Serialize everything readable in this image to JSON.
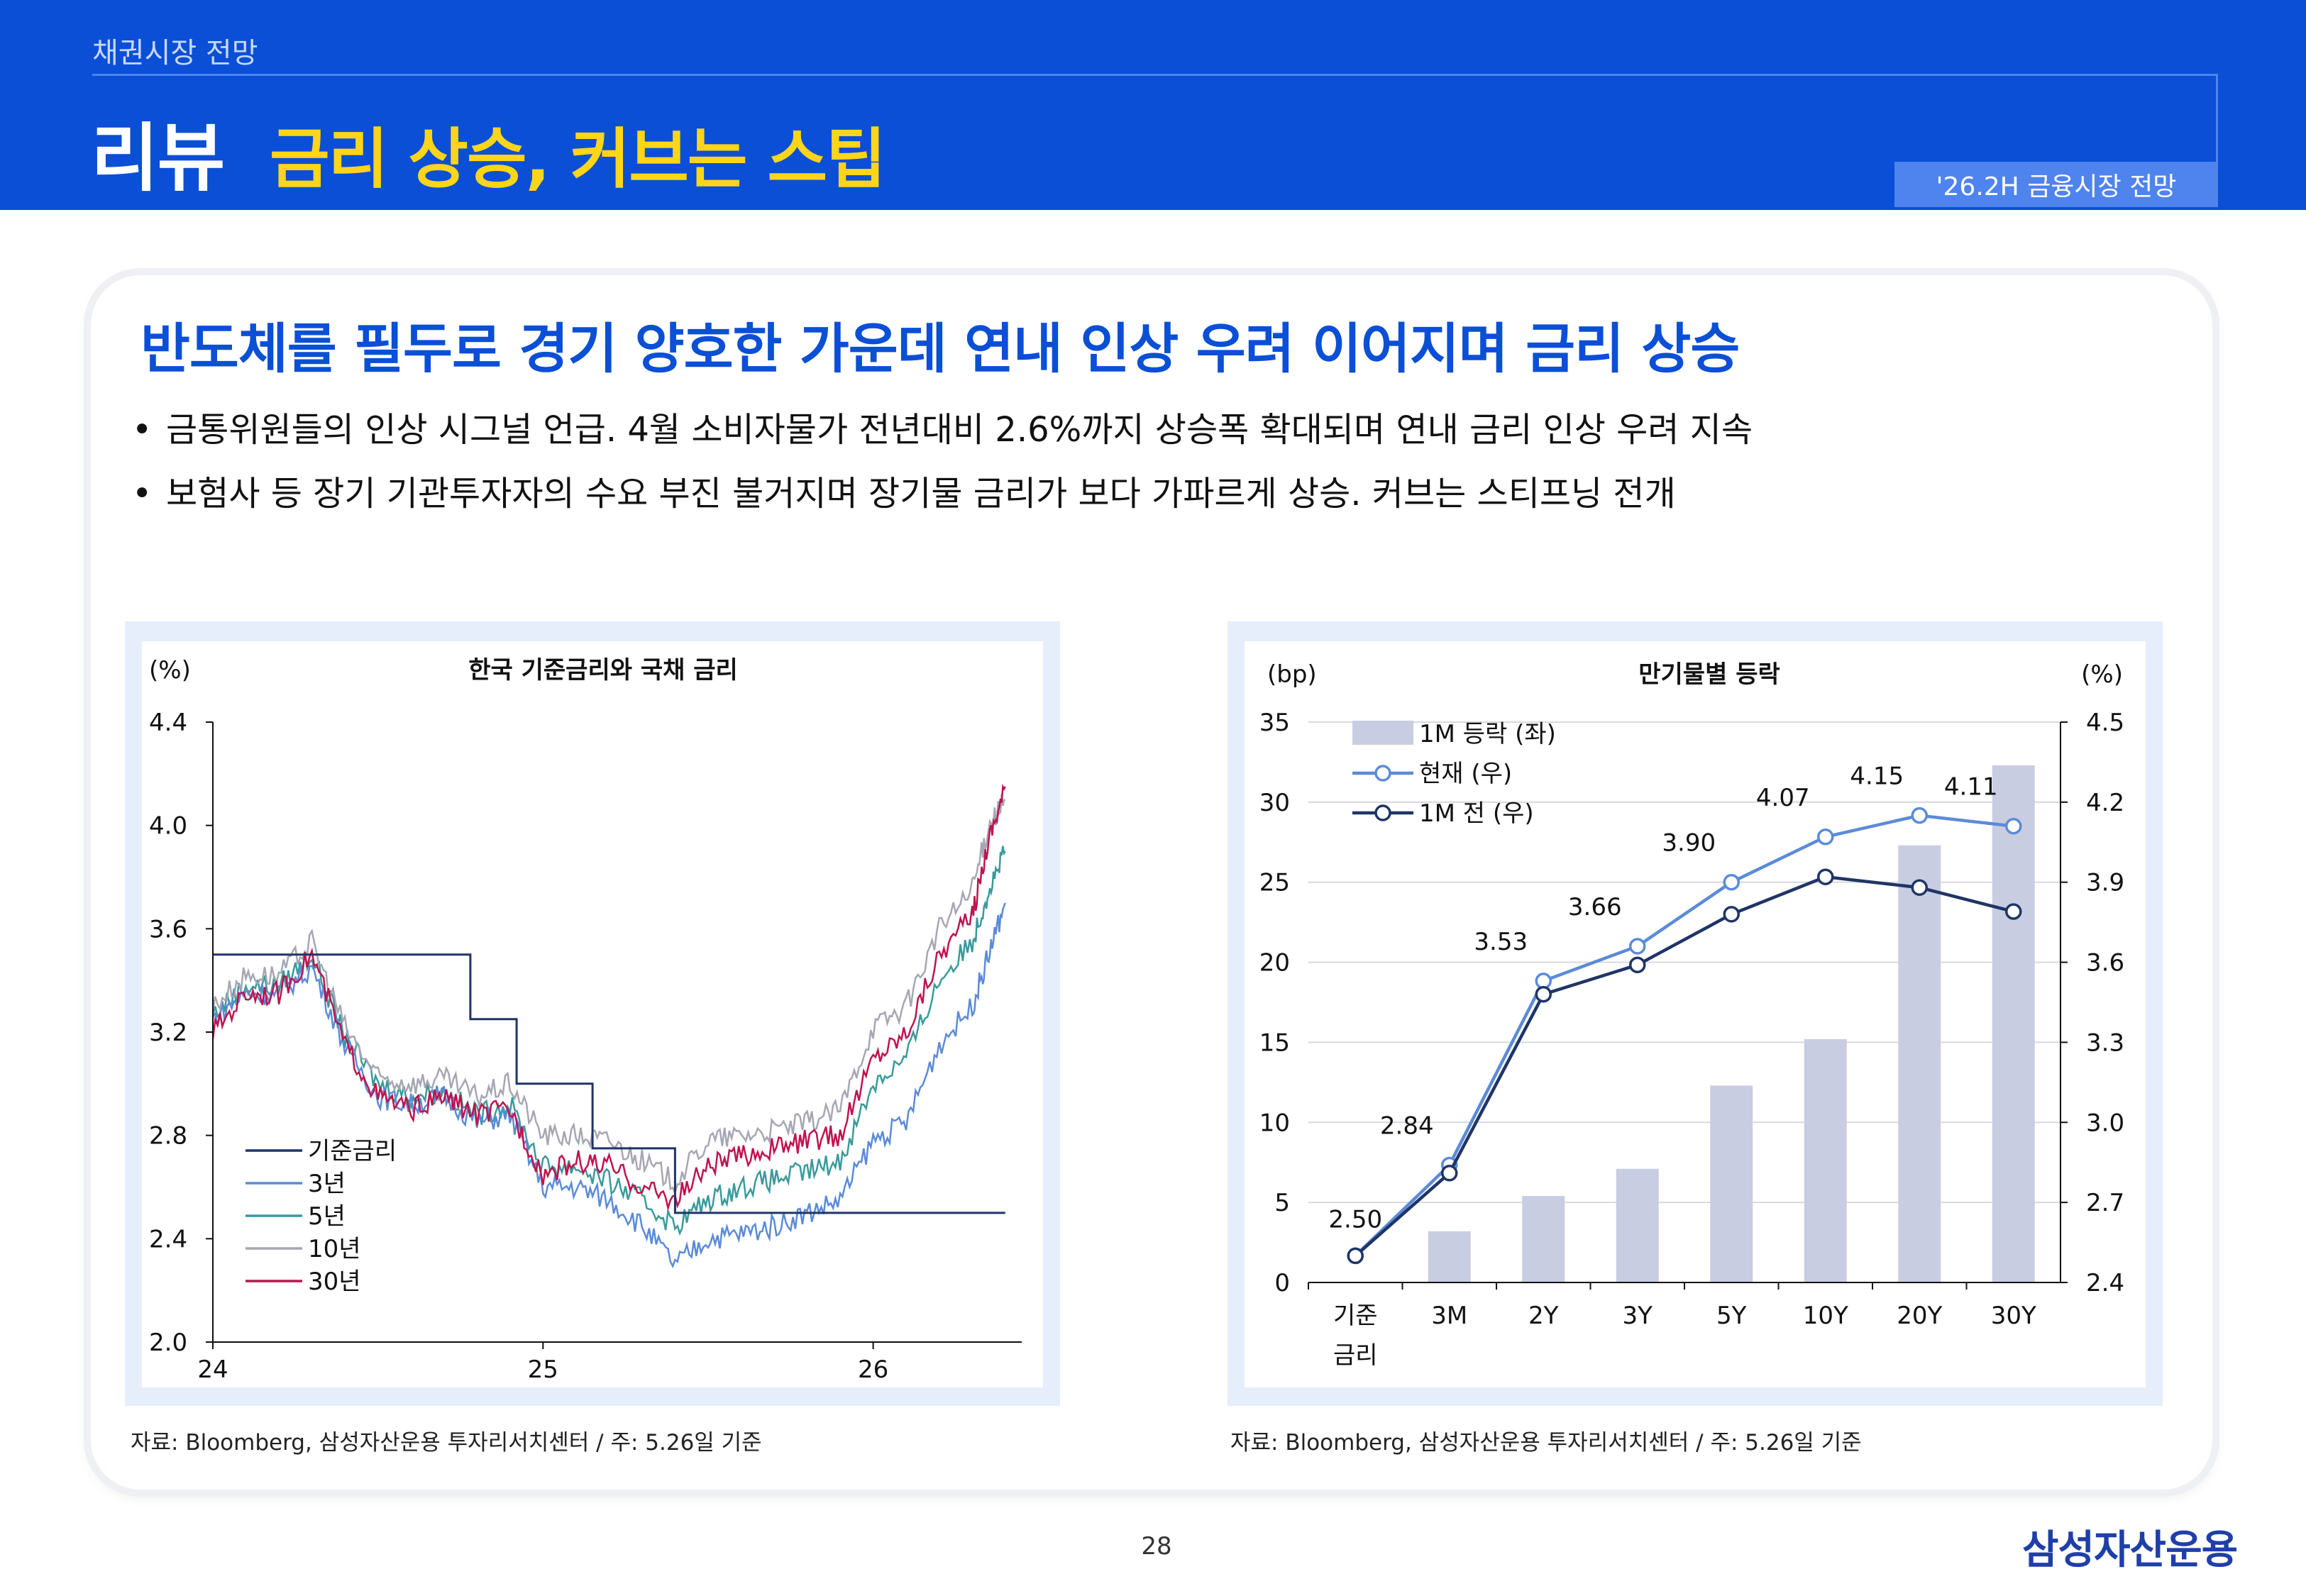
{
  "header": {
    "section": "채권시장 전망",
    "title": "리뷰",
    "subtitle": "금리 상승, 커브는 스팁",
    "tag": "'26.2H 금융시장 전망"
  },
  "main": {
    "headline": "반도체를 필두로 경기 양호한 가운데 연내 인상 우려 이어지며 금리 상승",
    "bullets": [
      "금통위원들의 인상 시그널 언급. 4월 소비자물가 전년대비 2.6%까지 상승폭 확대되며 연내 금리 인상 우려 지속",
      "보험사 등 장기 기관투자자의 수요 부진 불거지며 장기물 금리가 보다 가파르게 상승. 커브는 스티프닝 전개"
    ],
    "bullet_marker": "•"
  },
  "footer": {
    "page_number": "28",
    "brand": "삼성자산운용"
  },
  "chart_data": [
    {
      "type": "line",
      "title": "한국 기준금리와 국채 금리",
      "unit_label": "(%)",
      "ylim": [
        2.0,
        4.4
      ],
      "y_ticks": [
        "4.4",
        "4.0",
        "3.6",
        "3.2",
        "2.8",
        "2.4",
        "2.0"
      ],
      "x_ticks": [
        "24",
        "25",
        "26"
      ],
      "x_range": [
        24.0,
        26.45
      ],
      "legend": [
        "기준금리",
        "3년",
        "5년",
        "10년",
        "30년"
      ],
      "legend_position": "bottom-left",
      "colors": {
        "base_rate": "#1f3566",
        "y3": "#5b8bd8",
        "y5": "#3a9a9c",
        "y10": "#a6a6b4",
        "y30": "#c0134f"
      },
      "series": [
        {
          "name": "기준금리",
          "step": true,
          "x": [
            24.0,
            24.78,
            24.78,
            24.92,
            24.92,
            25.15,
            25.15,
            25.4,
            25.4,
            26.4
          ],
          "values": [
            3.5,
            3.5,
            3.25,
            3.25,
            3.0,
            3.0,
            2.75,
            2.75,
            2.5,
            2.5
          ]
        },
        {
          "name": "3년",
          "x": [
            24.0,
            24.1,
            24.2,
            24.3,
            24.4,
            24.5,
            24.6,
            24.7,
            24.8,
            24.9,
            25.0,
            25.1,
            25.2,
            25.3,
            25.4,
            25.5,
            25.6,
            25.7,
            25.8,
            25.9,
            26.0,
            26.1,
            26.2,
            26.3,
            26.35,
            26.4
          ],
          "values": [
            3.25,
            3.35,
            3.35,
            3.45,
            3.15,
            2.95,
            2.92,
            2.95,
            2.85,
            2.88,
            2.6,
            2.6,
            2.55,
            2.45,
            2.3,
            2.4,
            2.42,
            2.45,
            2.5,
            2.55,
            2.78,
            2.85,
            3.15,
            3.3,
            3.5,
            3.7
          ]
        },
        {
          "name": "5년",
          "x": [
            24.0,
            24.1,
            24.2,
            24.3,
            24.4,
            24.5,
            24.6,
            24.7,
            24.8,
            24.9,
            25.0,
            25.1,
            25.2,
            25.3,
            25.4,
            25.5,
            25.6,
            25.7,
            25.8,
            25.9,
            26.0,
            26.1,
            26.2,
            26.3,
            26.35,
            26.4
          ],
          "values": [
            3.27,
            3.38,
            3.38,
            3.5,
            3.18,
            3.0,
            2.95,
            2.97,
            2.88,
            2.92,
            2.68,
            2.68,
            2.62,
            2.55,
            2.45,
            2.55,
            2.6,
            2.63,
            2.66,
            2.7,
            3.0,
            3.1,
            3.4,
            3.55,
            3.75,
            3.9
          ]
        },
        {
          "name": "10년",
          "x": [
            24.0,
            24.1,
            24.2,
            24.3,
            24.4,
            24.5,
            24.6,
            24.7,
            24.8,
            24.9,
            25.0,
            25.1,
            25.2,
            25.3,
            25.4,
            25.5,
            25.6,
            25.7,
            25.8,
            25.9,
            26.0,
            26.1,
            26.2,
            26.3,
            26.35,
            26.4
          ],
          "values": [
            3.3,
            3.42,
            3.42,
            3.55,
            3.22,
            3.02,
            3.0,
            3.02,
            2.95,
            3.0,
            2.8,
            2.8,
            2.78,
            2.7,
            2.62,
            2.78,
            2.8,
            2.82,
            2.85,
            2.9,
            3.22,
            3.3,
            3.6,
            3.75,
            4.0,
            4.1
          ]
        },
        {
          "name": "30년",
          "x": [
            24.0,
            24.1,
            24.2,
            24.3,
            24.4,
            24.5,
            24.6,
            24.7,
            24.8,
            24.9,
            25.0,
            25.1,
            25.2,
            25.3,
            25.4,
            25.5,
            25.6,
            25.7,
            25.8,
            25.9,
            26.0,
            26.1,
            26.2,
            26.3,
            26.35,
            26.4
          ],
          "values": [
            3.2,
            3.35,
            3.35,
            3.5,
            3.15,
            2.95,
            2.9,
            2.95,
            2.88,
            2.9,
            2.65,
            2.7,
            2.68,
            2.6,
            2.55,
            2.68,
            2.72,
            2.75,
            2.78,
            2.8,
            3.1,
            3.2,
            3.5,
            3.65,
            3.95,
            4.15
          ]
        }
      ],
      "source": "자료: Bloomberg, 삼성자산운용 투자리서치센터 / 주: 5.26일 기준"
    },
    {
      "type": "bar+line",
      "title": "만기물별 등락",
      "left_unit": "(bp)",
      "right_unit": "(%)",
      "categories": [
        "기준\n금리",
        "3M",
        "2Y",
        "3Y",
        "5Y",
        "10Y",
        "20Y",
        "30Y"
      ],
      "y_left": {
        "lim": [
          0,
          35
        ],
        "ticks": [
          "35",
          "30",
          "25",
          "20",
          "15",
          "10",
          "5",
          "0"
        ]
      },
      "y_right": {
        "lim": [
          2.4,
          4.5
        ],
        "ticks": [
          "4.5",
          "4.2",
          "3.9",
          "3.6",
          "3.3",
          "3.0",
          "2.7",
          "2.4"
        ]
      },
      "legend_position": "top-left",
      "colors": {
        "bar": "#c9cde2",
        "current": "#5b8bd8",
        "prev": "#1f3566"
      },
      "series": [
        {
          "name": "1M 등락 (좌)",
          "kind": "bar",
          "axis": "left",
          "values": [
            null,
            3.2,
            5.4,
            7.1,
            12.3,
            15.2,
            27.3,
            32.3
          ]
        },
        {
          "name": "현재 (우)",
          "kind": "line",
          "axis": "right",
          "values": [
            2.5,
            2.84,
            3.53,
            3.66,
            3.9,
            4.07,
            4.15,
            4.11
          ],
          "labels": [
            "2.50",
            "2.84",
            "3.53",
            "3.66",
            "3.90",
            "4.07",
            "4.15",
            "4.11"
          ]
        },
        {
          "name": "1M 전 (우)",
          "kind": "line",
          "axis": "right",
          "values": [
            2.5,
            2.81,
            3.48,
            3.59,
            3.78,
            3.92,
            3.88,
            3.79
          ]
        }
      ],
      "source": "자료: Bloomberg, 삼성자산운용 투자리서치센터 / 주: 5.26일 기준"
    }
  ]
}
